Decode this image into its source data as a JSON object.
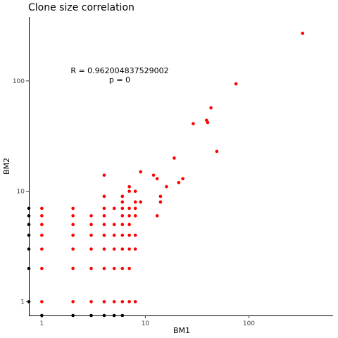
{
  "chart_data": {
    "type": "scatter",
    "title": "Clone size correlation",
    "xlabel": "BM1",
    "ylabel": "BM2",
    "xscale": "log10",
    "yscale": "log10",
    "xlim": [
      0.75,
      650
    ],
    "ylim": [
      0.75,
      380
    ],
    "x_ticks": [
      1,
      10,
      100
    ],
    "y_ticks": [
      1,
      10,
      100
    ],
    "x_tick_labels": [
      "1",
      "10",
      "100"
    ],
    "y_tick_labels": [
      "1",
      "10",
      "100"
    ],
    "grid": false,
    "legend": "none",
    "annotations": [
      "R = 0.962004837529002",
      "p = 0"
    ],
    "series_colors": {
      "red": "#ff0000",
      "black": "#000000"
    },
    "series": [
      {
        "color": "red",
        "points": [
          [
            1,
            1
          ],
          [
            1,
            2
          ],
          [
            1,
            3
          ],
          [
            1,
            4
          ],
          [
            1,
            5
          ],
          [
            1,
            6
          ],
          [
            1,
            7
          ],
          [
            2,
            1
          ],
          [
            2,
            2
          ],
          [
            2,
            3
          ],
          [
            2,
            4
          ],
          [
            2,
            5
          ],
          [
            2,
            6
          ],
          [
            2,
            7
          ],
          [
            3,
            1
          ],
          [
            3,
            2
          ],
          [
            3,
            3
          ],
          [
            3,
            4
          ],
          [
            3,
            5
          ],
          [
            3,
            6
          ],
          [
            4,
            1
          ],
          [
            4,
            2
          ],
          [
            4,
            3
          ],
          [
            4,
            4
          ],
          [
            4,
            5
          ],
          [
            4,
            6
          ],
          [
            4,
            7
          ],
          [
            4,
            9
          ],
          [
            4,
            14
          ],
          [
            5,
            1
          ],
          [
            5,
            2
          ],
          [
            5,
            3
          ],
          [
            5,
            4
          ],
          [
            5,
            5
          ],
          [
            5,
            7
          ],
          [
            6,
            1
          ],
          [
            6,
            2
          ],
          [
            6,
            3
          ],
          [
            6,
            4
          ],
          [
            6,
            5
          ],
          [
            6,
            6
          ],
          [
            6,
            7
          ],
          [
            6,
            8
          ],
          [
            6,
            9
          ],
          [
            7,
            1
          ],
          [
            7,
            2
          ],
          [
            7,
            3
          ],
          [
            7,
            4
          ],
          [
            7,
            5
          ],
          [
            7,
            6
          ],
          [
            7,
            7
          ],
          [
            7,
            10
          ],
          [
            7,
            11
          ],
          [
            8,
            1
          ],
          [
            8,
            3
          ],
          [
            8,
            4
          ],
          [
            8,
            6
          ],
          [
            8,
            7
          ],
          [
            8,
            8
          ],
          [
            8,
            10
          ],
          [
            9,
            8
          ],
          [
            9,
            15
          ],
          [
            12,
            14
          ],
          [
            13,
            6
          ],
          [
            13,
            13
          ],
          [
            14,
            8
          ],
          [
            14,
            9
          ],
          [
            16,
            11
          ],
          [
            19,
            20
          ],
          [
            21,
            12
          ],
          [
            23,
            13
          ],
          [
            29,
            41
          ],
          [
            39,
            44
          ],
          [
            40,
            42
          ],
          [
            43,
            57
          ],
          [
            49,
            23
          ],
          [
            75,
            94
          ],
          [
            330,
            270
          ]
        ]
      },
      {
        "color": "black",
        "points": [
          [
            0.75,
            1
          ],
          [
            0.75,
            2
          ],
          [
            0.75,
            3
          ],
          [
            0.75,
            4
          ],
          [
            0.75,
            5
          ],
          [
            0.75,
            6
          ],
          [
            0.75,
            7
          ],
          [
            1,
            0.75
          ],
          [
            2,
            0.75
          ],
          [
            3,
            0.75
          ],
          [
            4,
            0.75
          ],
          [
            5,
            0.75
          ],
          [
            6,
            0.75
          ]
        ]
      }
    ]
  }
}
